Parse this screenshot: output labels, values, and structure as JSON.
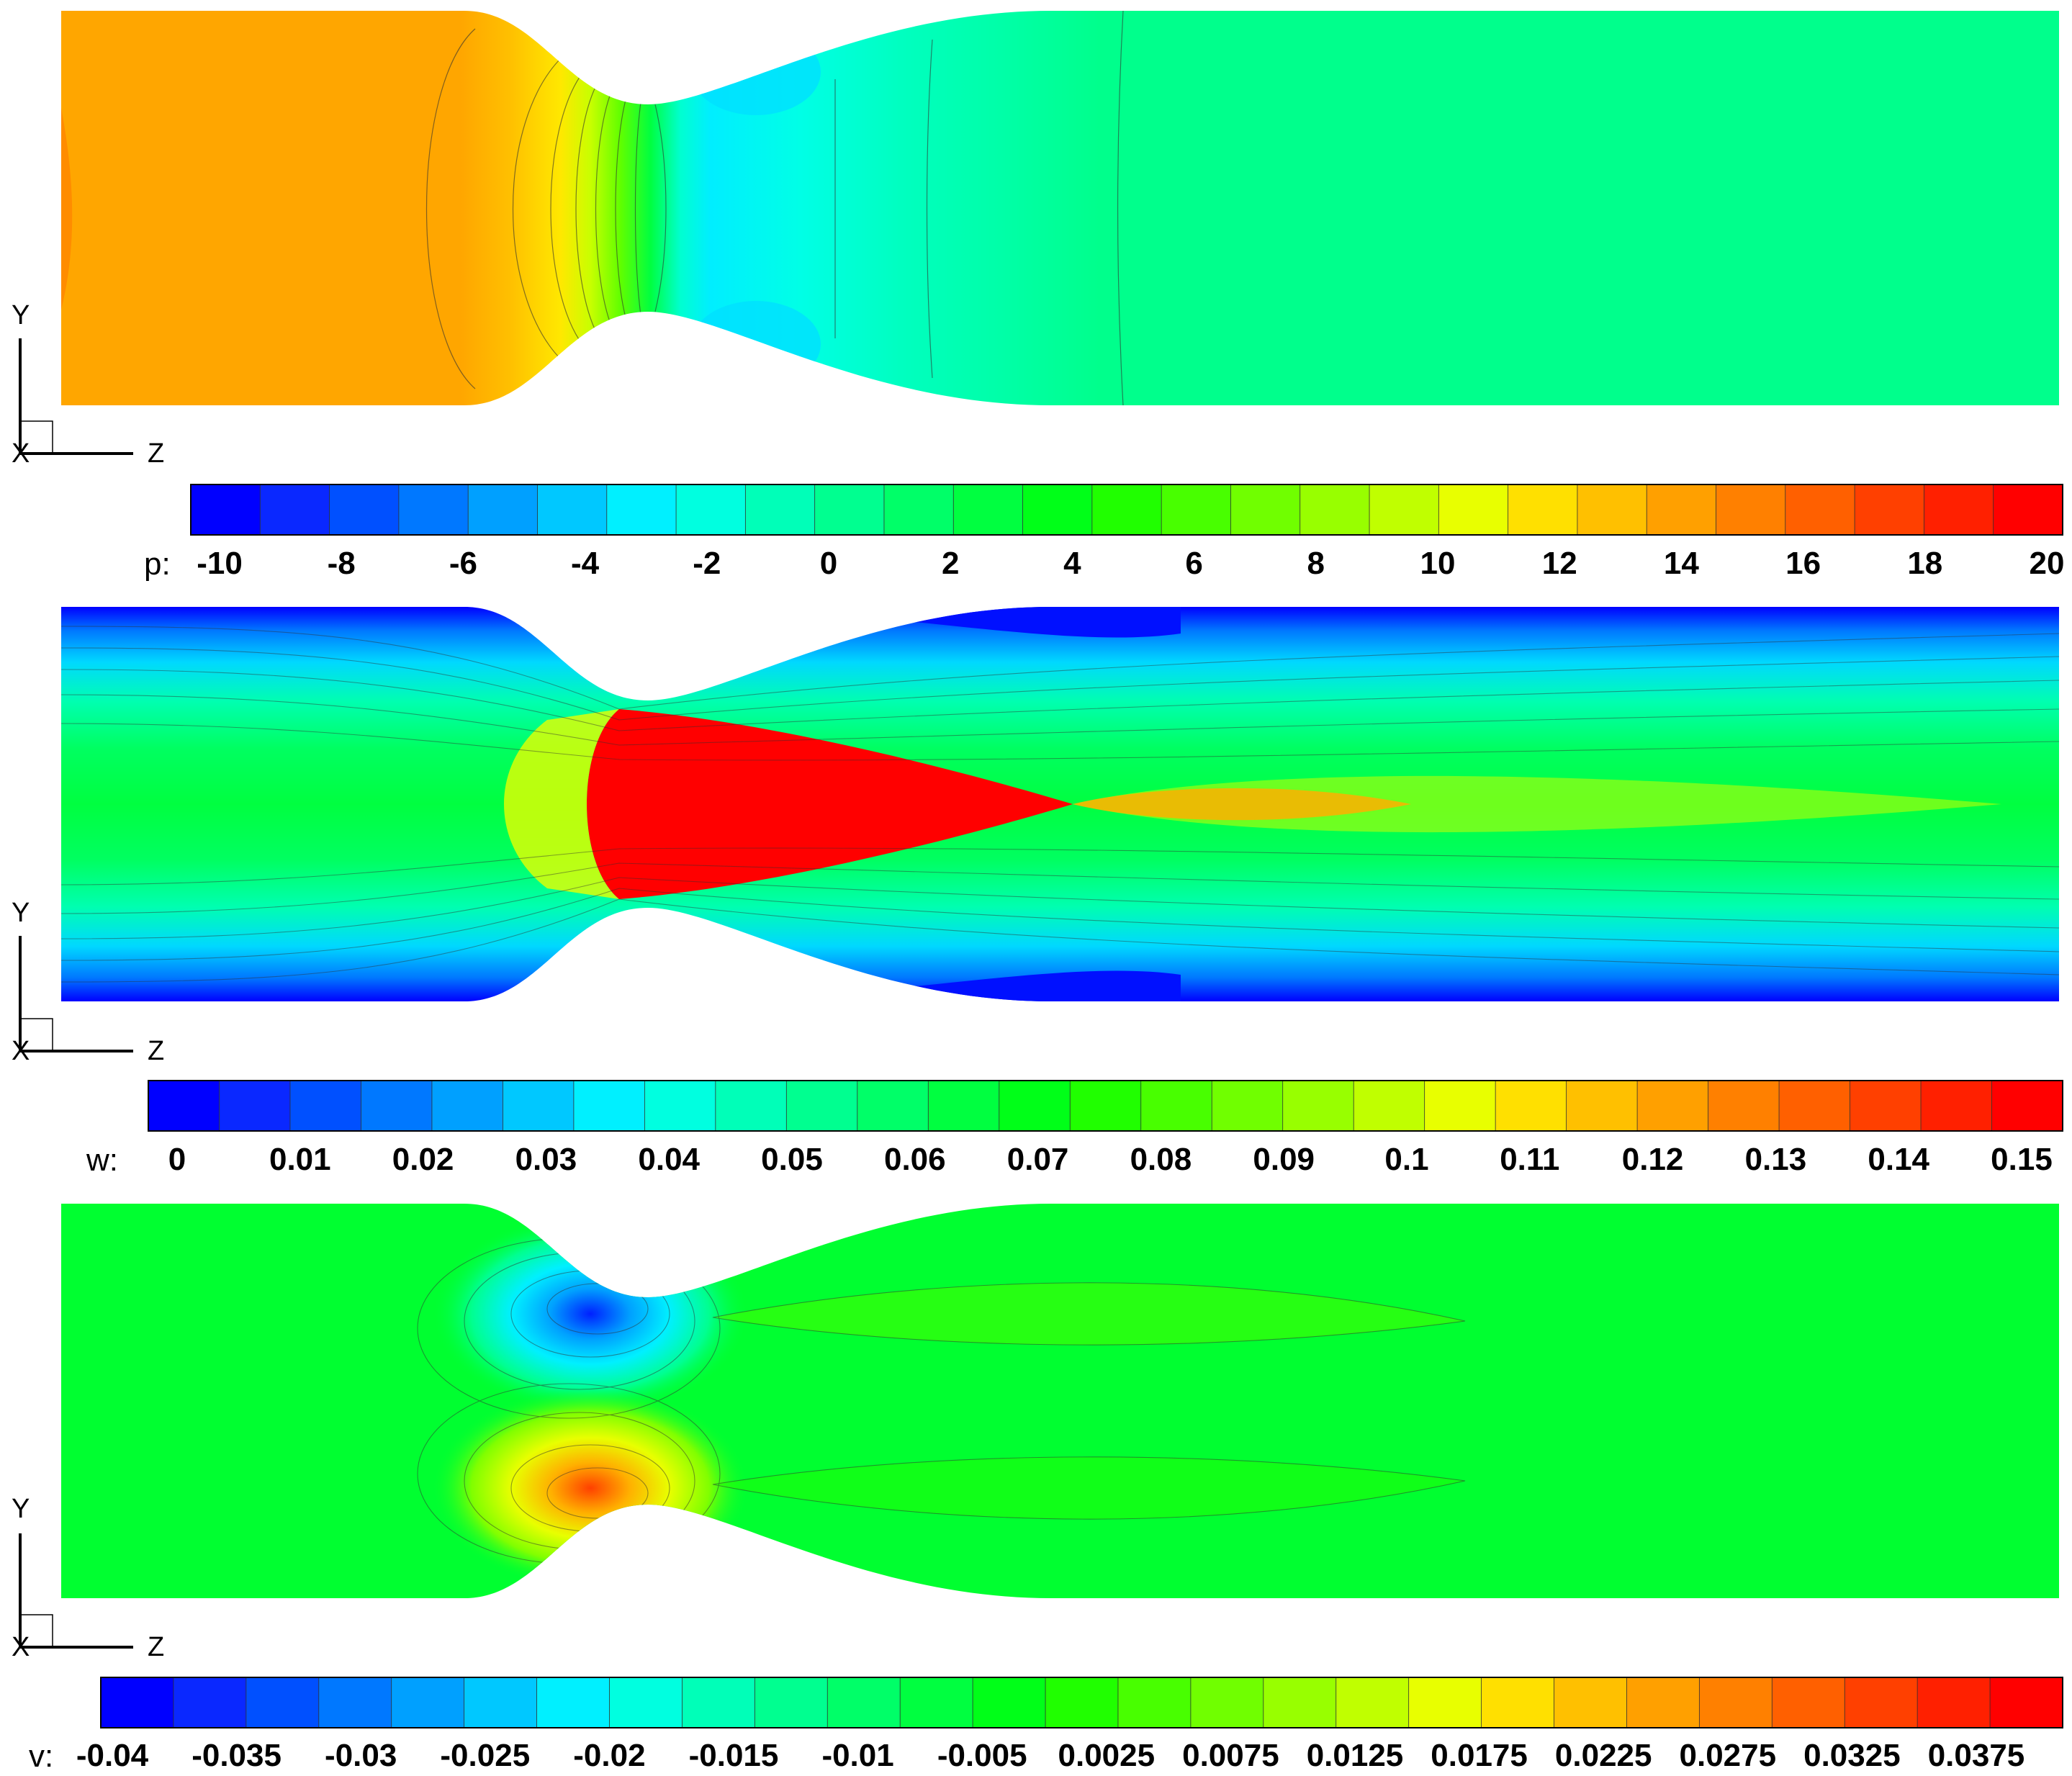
{
  "panels": [
    {
      "id": "pressure",
      "variable_label": "p:",
      "tick_labels": [
        "-10",
        "-8",
        "-6",
        "-4",
        "-2",
        "0",
        "2",
        "4",
        "6",
        "8",
        "10",
        "12",
        "14",
        "16",
        "18",
        "20"
      ],
      "axis": {
        "vertical": "Y",
        "horizontal": "Z",
        "out_of_plane": "X"
      }
    },
    {
      "id": "axial-velocity",
      "variable_label": "w:",
      "tick_labels": [
        "0",
        "0.01",
        "0.02",
        "0.03",
        "0.04",
        "0.05",
        "0.06",
        "0.07",
        "0.08",
        "0.09",
        "0.1",
        "0.11",
        "0.12",
        "0.13",
        "0.14",
        "0.15"
      ],
      "axis": {
        "vertical": "Y",
        "horizontal": "Z",
        "out_of_plane": "X"
      }
    },
    {
      "id": "radial-velocity",
      "variable_label": "v:",
      "tick_labels": [
        "-0.04",
        "-0.035",
        "-0.03",
        "-0.025",
        "-0.02",
        "-0.015",
        "-0.01",
        "-0.005",
        "0.0025",
        "0.0075",
        "0.0125",
        "0.0175",
        "0.0225",
        "0.0275",
        "0.0325",
        "0.0375"
      ],
      "axis": {
        "vertical": "Y",
        "horizontal": "Z",
        "out_of_plane": "X"
      }
    }
  ],
  "colormap": [
    "#0000ff",
    "#0a28ff",
    "#0050ff",
    "#0078ff",
    "#00a0ff",
    "#00c8ff",
    "#00f0ff",
    "#00ffe0",
    "#00ffb8",
    "#00ff90",
    "#00ff68",
    "#00ff40",
    "#00ff18",
    "#20ff00",
    "#48ff00",
    "#70ff00",
    "#98ff00",
    "#c0ff00",
    "#e8ff00",
    "#ffe000",
    "#ffc000",
    "#ffa000",
    "#ff8000",
    "#ff6000",
    "#ff4000",
    "#ff2000",
    "#ff0000"
  ],
  "colors": {
    "pressure_field": "#ffa600",
    "pressure_wake": "#00ff8c",
    "background": "#ffffff"
  }
}
